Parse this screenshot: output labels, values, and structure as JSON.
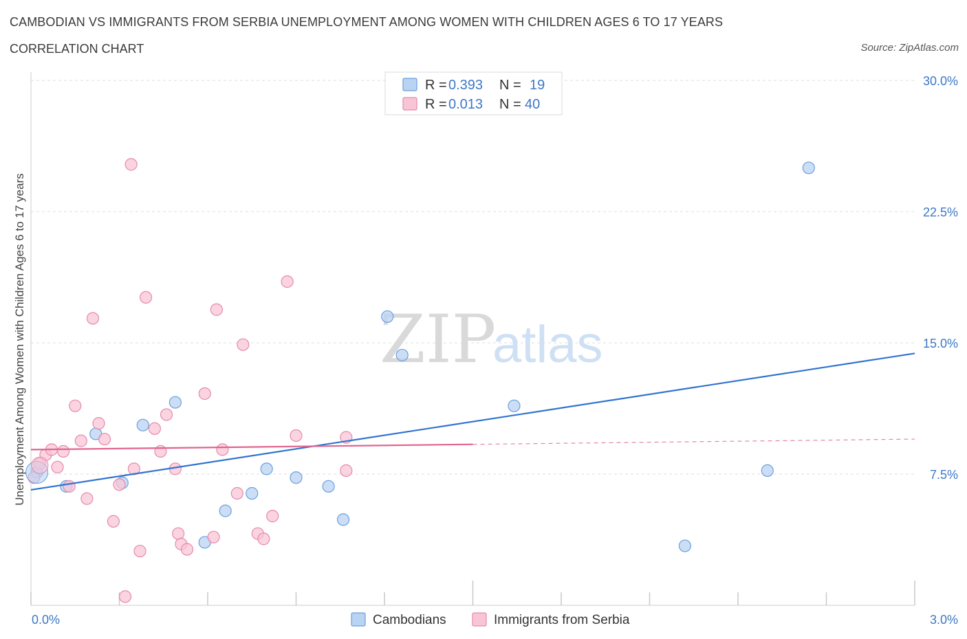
{
  "header": {
    "title": "CAMBODIAN VS IMMIGRANTS FROM SERBIA UNEMPLOYMENT AMONG WOMEN WITH CHILDREN AGES 6 TO 17 YEARS",
    "subtitle": "CORRELATION CHART",
    "source": "Source: ZipAtlas.com"
  },
  "watermark": {
    "zip": "ZIP",
    "atlas": "atlas"
  },
  "colors": {
    "blue_fill": "#b9d3f3",
    "blue_stroke": "#6a9fdc",
    "blue_line": "#2f73d0",
    "pink_fill": "#f8c5d6",
    "pink_stroke": "#e68aa9",
    "pink_line": "#e0648e",
    "grid": "#dcdcdc",
    "tick_text": "#3b78c6"
  },
  "legend": {
    "rows": [
      {
        "r_label": "R = ",
        "r_value": "0.393",
        "n_label": "N = ",
        "n_value": "19",
        "series": "blue"
      },
      {
        "r_label": "R = ",
        "r_value": "0.013",
        "n_label": "N = ",
        "n_value": "40",
        "series": "pink"
      }
    ]
  },
  "chart_data": {
    "type": "scatter",
    "xlabel": "",
    "ylabel": "Unemployment Among Women with Children Ages 6 to 17 years",
    "xlim": [
      0,
      3.0
    ],
    "ylim": [
      0,
      30.0
    ],
    "x_tick_labels": [
      "0.0%",
      "3.0%"
    ],
    "x_tick_values": [
      0,
      3.0
    ],
    "y_tick_labels": [
      "7.5%",
      "15.0%",
      "22.5%",
      "30.0%"
    ],
    "y_tick_values": [
      7.5,
      15.0,
      22.5,
      30.0
    ],
    "grid": "horizontal dashed",
    "legend_position": "top-center",
    "series": [
      {
        "name": "Cambodians",
        "color": "blue",
        "points": [
          [
            0.02,
            7.6
          ],
          [
            0.12,
            6.8
          ],
          [
            0.22,
            9.8
          ],
          [
            0.31,
            7.0
          ],
          [
            0.38,
            10.3
          ],
          [
            0.49,
            11.6
          ],
          [
            0.59,
            3.6
          ],
          [
            0.66,
            5.4
          ],
          [
            0.75,
            6.4
          ],
          [
            0.8,
            7.8
          ],
          [
            0.9,
            7.3
          ],
          [
            1.01,
            6.8
          ],
          [
            1.06,
            4.9
          ],
          [
            1.21,
            16.5
          ],
          [
            1.26,
            14.3
          ],
          [
            1.64,
            11.4
          ],
          [
            2.22,
            3.4
          ],
          [
            2.5,
            7.7
          ],
          [
            2.64,
            25.0
          ]
        ],
        "trend": {
          "x": [
            0,
            3.0
          ],
          "y": [
            6.6,
            14.4
          ],
          "style": "solid"
        }
      },
      {
        "name": "Immigrants from Serbia",
        "color": "pink",
        "points": [
          [
            0.01,
            7.3
          ],
          [
            0.03,
            8.1
          ],
          [
            0.05,
            8.6
          ],
          [
            0.07,
            8.9
          ],
          [
            0.09,
            7.9
          ],
          [
            0.11,
            8.8
          ],
          [
            0.13,
            6.8
          ],
          [
            0.15,
            11.4
          ],
          [
            0.17,
            9.4
          ],
          [
            0.19,
            6.1
          ],
          [
            0.21,
            16.4
          ],
          [
            0.23,
            10.4
          ],
          [
            0.25,
            9.5
          ],
          [
            0.28,
            4.8
          ],
          [
            0.3,
            6.9
          ],
          [
            0.32,
            0.5
          ],
          [
            0.34,
            25.2
          ],
          [
            0.35,
            7.8
          ],
          [
            0.37,
            3.1
          ],
          [
            0.39,
            17.6
          ],
          [
            0.42,
            10.1
          ],
          [
            0.44,
            8.8
          ],
          [
            0.46,
            10.9
          ],
          [
            0.49,
            7.8
          ],
          [
            0.5,
            4.1
          ],
          [
            0.51,
            3.5
          ],
          [
            0.53,
            3.2
          ],
          [
            0.59,
            12.1
          ],
          [
            0.62,
            3.9
          ],
          [
            0.63,
            16.9
          ],
          [
            0.65,
            8.9
          ],
          [
            0.7,
            6.4
          ],
          [
            0.72,
            14.9
          ],
          [
            0.77,
            4.1
          ],
          [
            0.79,
            3.8
          ],
          [
            0.82,
            5.1
          ],
          [
            0.87,
            18.5
          ],
          [
            0.9,
            9.7
          ],
          [
            1.07,
            9.6
          ],
          [
            1.07,
            7.7
          ]
        ],
        "trend": {
          "x": [
            0,
            1.5
          ],
          "y": [
            8.9,
            9.2
          ],
          "style": "solid",
          "extension": {
            "x": [
              1.5,
              3.0
            ],
            "y": [
              9.2,
              9.5
            ],
            "style": "dashed"
          }
        }
      }
    ]
  },
  "bottom_legend": [
    {
      "label": "Cambodians",
      "series": "blue"
    },
    {
      "label": "Immigrants from Serbia",
      "series": "pink"
    }
  ]
}
